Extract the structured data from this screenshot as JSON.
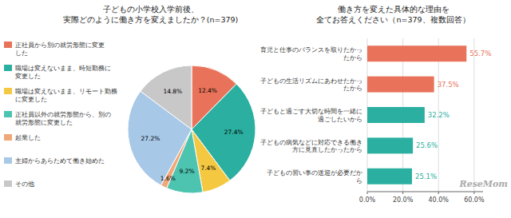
{
  "chart_data": [
    {
      "type": "pie",
      "title": "子どもの小学校入学前後、\n実際どのように働き方を変えましたか？(n=379)",
      "categories": [
        "正社員から別の就労形態に変更\nした",
        "職場は変えないまま、時短勤務に\n変更した",
        "職場は変えないまま、リモート勤務\nに変更した",
        "正社員以外の就労形態から、別の\n就労形態に変更した",
        "起業した",
        "主婦からあらためて働き始めた",
        "その他"
      ],
      "values": [
        12.4,
        27.4,
        7.4,
        9.2,
        1.6,
        27.2,
        14.8
      ],
      "value_labels": [
        "12.4%",
        "27.4%",
        "7.4%",
        "9.2%",
        "1.6%",
        "27.2%",
        "14.8%"
      ],
      "colors": [
        "#E8735A",
        "#2BAFA0",
        "#F5C842",
        "#4CC4B0",
        "#F0A87A",
        "#A8C8E8",
        "#C8C8C8"
      ],
      "data_labels": true,
      "legend": "left"
    },
    {
      "type": "bar",
      "orientation": "horizontal",
      "title": "働き方を変えた具体的な理由を\n全てお答えください（n=379、複数回答）",
      "categories": [
        "育児と仕事のバランスを取りたかっ\nたから",
        "子どもの生活リズムにあわせたかっ\nたから",
        "子どもと過ごす大切な時間を一緒に\n過ごしたいから",
        "子どもの病気などに対応できる働き\n方に見直したかったから",
        "子どもの習い事の送迎が必要だか\nら"
      ],
      "values": [
        55.7,
        37.5,
        32.2,
        25.6,
        25.1
      ],
      "value_labels": [
        "55.7%",
        "37.5%",
        "32.2%",
        "25.6%",
        "25.1%"
      ],
      "colors": [
        "#E8735A",
        "#E8735A",
        "#2BAFA0",
        "#2BAFA0",
        "#2BAFA0"
      ],
      "xlim": [
        0,
        65
      ],
      "xticks": [
        {
          "value": 0,
          "label": "0.0%"
        },
        {
          "value": 20.0,
          "label": "20.0%"
        },
        {
          "value": 40.0,
          "label": "40.0%"
        },
        {
          "value": 60.0,
          "label": "60.0%"
        }
      ],
      "grid": true,
      "data_labels": true,
      "annotations": [
        "ReseMom"
      ]
    }
  ]
}
